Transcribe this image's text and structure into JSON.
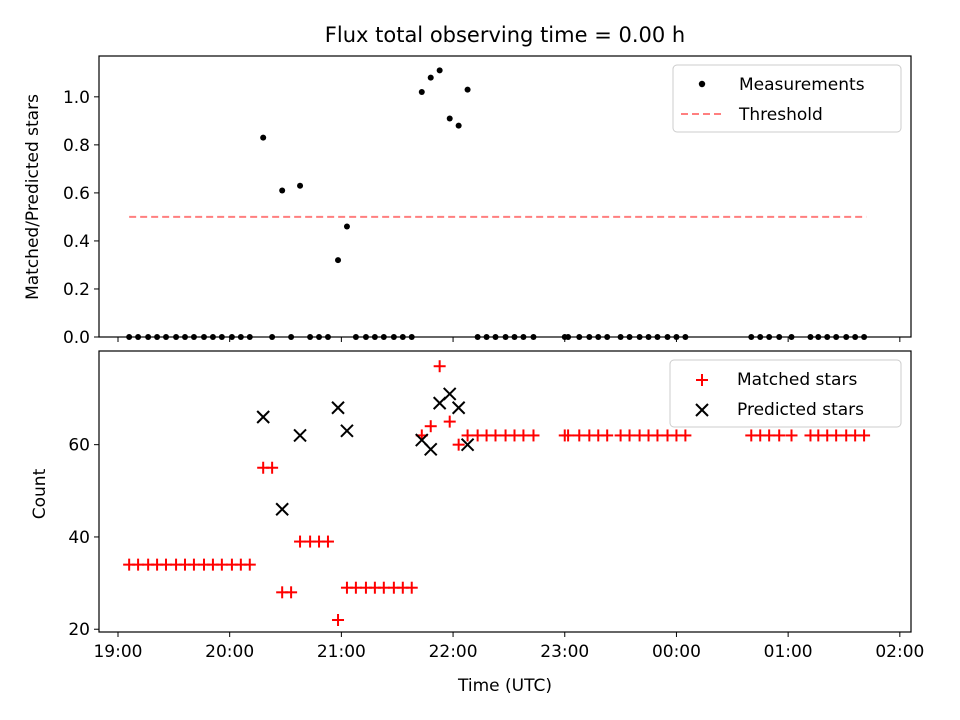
{
  "title": "Flux total observing time = 0.00 h",
  "x_tick_labels": [
    "19:00",
    "20:00",
    "21:00",
    "22:00",
    "23:00",
    "00:00",
    "01:00",
    "02:00"
  ],
  "xlabel": "Time (UTC)",
  "chart_data": [
    {
      "type": "scatter",
      "ylabel": "Matched/Predicted stars",
      "xlim_hours": [
        18.83,
        26.1
      ],
      "ylim": [
        0,
        1.17
      ],
      "y_ticks": [
        0.0,
        0.2,
        0.4,
        0.6,
        0.8,
        1.0
      ],
      "y_tick_labels": [
        "0.0",
        "0.2",
        "0.4",
        "0.6",
        "0.8",
        "1.0"
      ],
      "legend_position": "upper right",
      "legend": [
        "Measurements",
        "Threshold"
      ],
      "series": [
        {
          "name": "Measurements",
          "marker": "dot",
          "color": "#000000",
          "x_hours": [
            19.1,
            19.18,
            19.27,
            19.35,
            19.43,
            19.52,
            19.6,
            19.68,
            19.77,
            19.85,
            19.93,
            20.02,
            20.1,
            20.18,
            20.3,
            20.38,
            20.47,
            20.55,
            20.63,
            20.72,
            20.8,
            20.88,
            20.97,
            21.05,
            21.13,
            21.22,
            21.3,
            21.38,
            21.47,
            21.55,
            21.63,
            21.72,
            21.8,
            21.88,
            21.97,
            22.05,
            22.13,
            22.22,
            22.3,
            22.38,
            22.47,
            22.55,
            22.63,
            22.72,
            23.0,
            23.03,
            23.13,
            23.22,
            23.3,
            23.38,
            23.5,
            23.58,
            23.67,
            23.75,
            23.83,
            23.92,
            24.0,
            24.08,
            24.67,
            24.75,
            24.83,
            24.92,
            25.03,
            25.2,
            25.27,
            25.35,
            25.43,
            25.52,
            25.6,
            25.68
          ],
          "y": [
            0,
            0,
            0,
            0,
            0,
            0,
            0,
            0,
            0,
            0,
            0,
            0,
            0,
            0,
            0.83,
            0,
            0.61,
            0,
            0.63,
            0,
            0,
            0,
            0.32,
            0.46,
            0,
            0,
            0,
            0,
            0,
            0,
            0,
            1.02,
            1.08,
            1.11,
            0.91,
            0.88,
            1.03,
            0,
            0,
            0,
            0,
            0,
            0,
            0,
            0,
            0,
            0,
            0,
            0,
            0,
            0,
            0,
            0,
            0,
            0,
            0,
            0,
            0,
            0,
            0,
            0,
            0,
            0,
            0,
            0,
            0,
            0,
            0,
            0,
            0
          ]
        },
        {
          "name": "Threshold",
          "style": "dashed",
          "color": "#ff7f7f",
          "x_hours": [
            19.1,
            25.7
          ],
          "y": [
            0.5,
            0.5
          ]
        }
      ]
    },
    {
      "type": "scatter",
      "ylabel": "Count",
      "xlim_hours": [
        18.83,
        26.1
      ],
      "ylim": [
        19.4,
        80.3
      ],
      "y_ticks": [
        20,
        40,
        60
      ],
      "y_tick_labels": [
        "20",
        "40",
        "60"
      ],
      "legend_position": "upper right",
      "legend": [
        "Matched stars",
        "Predicted stars"
      ],
      "series": [
        {
          "name": "Matched stars",
          "marker": "plus",
          "color": "#ff0000",
          "x_hours": [
            19.1,
            19.18,
            19.27,
            19.35,
            19.43,
            19.52,
            19.6,
            19.68,
            19.77,
            19.85,
            19.93,
            20.02,
            20.1,
            20.18,
            20.3,
            20.38,
            20.47,
            20.55,
            20.63,
            20.72,
            20.8,
            20.88,
            20.97,
            21.05,
            21.13,
            21.22,
            21.3,
            21.38,
            21.47,
            21.55,
            21.63,
            21.72,
            21.8,
            21.88,
            21.97,
            22.05,
            22.13,
            22.22,
            22.3,
            22.38,
            22.47,
            22.55,
            22.63,
            22.72,
            23.0,
            23.03,
            23.13,
            23.22,
            23.3,
            23.38,
            23.5,
            23.58,
            23.67,
            23.75,
            23.83,
            23.92,
            24.0,
            24.08,
            24.67,
            24.75,
            24.83,
            24.92,
            25.03,
            25.2,
            25.27,
            25.35,
            25.43,
            25.52,
            25.6,
            25.68
          ],
          "y": [
            34,
            34,
            34,
            34,
            34,
            34,
            34,
            34,
            34,
            34,
            34,
            34,
            34,
            34,
            55,
            55,
            28,
            28,
            39,
            39,
            39,
            39,
            22,
            29,
            29,
            29,
            29,
            29,
            29,
            29,
            29,
            62,
            64,
            77,
            65,
            60,
            62,
            62,
            62,
            62,
            62,
            62,
            62,
            62,
            62,
            62,
            62,
            62,
            62,
            62,
            62,
            62,
            62,
            62,
            62,
            62,
            62,
            62,
            62,
            62,
            62,
            62,
            62,
            62,
            62,
            62,
            62,
            62,
            62,
            62
          ]
        },
        {
          "name": "Predicted stars",
          "marker": "x",
          "color": "#000000",
          "x_hours": [
            20.3,
            20.47,
            20.63,
            20.97,
            21.05,
            21.72,
            21.8,
            21.88,
            21.97,
            22.05,
            22.13
          ],
          "y": [
            66,
            46,
            62,
            68,
            63,
            61,
            59,
            69,
            71,
            68,
            60
          ]
        }
      ]
    }
  ]
}
